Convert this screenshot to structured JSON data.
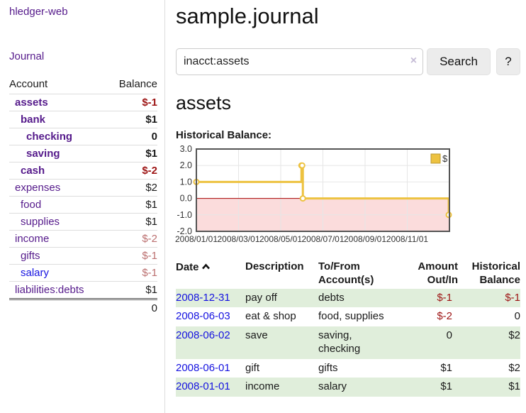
{
  "sidebar": {
    "brand": "hledger-web",
    "journal_link": "Journal",
    "account_header": "Account",
    "balance_header": "Balance",
    "accounts": [
      {
        "name": "assets",
        "indent": 1,
        "bold": true,
        "balance": "$-1",
        "balance_tone": "neg-strong",
        "link_tone": "purple"
      },
      {
        "name": "bank",
        "indent": 2,
        "bold": true,
        "balance": "$1",
        "balance_tone": "plain",
        "link_tone": "purple"
      },
      {
        "name": "checking",
        "indent": 3,
        "bold": true,
        "balance": "0",
        "balance_tone": "plain",
        "link_tone": "purple"
      },
      {
        "name": "saving",
        "indent": 3,
        "bold": true,
        "balance": "$1",
        "balance_tone": "plain",
        "link_tone": "purple"
      },
      {
        "name": "cash",
        "indent": 2,
        "bold": true,
        "balance": "$-2",
        "balance_tone": "neg-strong",
        "link_tone": "purple"
      },
      {
        "name": "expenses",
        "indent": 1,
        "bold": false,
        "balance": "$2",
        "balance_tone": "plain",
        "link_tone": "purple"
      },
      {
        "name": "food",
        "indent": 2,
        "bold": false,
        "balance": "$1",
        "balance_tone": "plain",
        "link_tone": "purple"
      },
      {
        "name": "supplies",
        "indent": 2,
        "bold": false,
        "balance": "$1",
        "balance_tone": "plain",
        "link_tone": "purple"
      },
      {
        "name": "income",
        "indent": 1,
        "bold": false,
        "balance": "$-2",
        "balance_tone": "neg-soft",
        "link_tone": "purple"
      },
      {
        "name": "gifts",
        "indent": 2,
        "bold": false,
        "balance": "$-1",
        "balance_tone": "neg-soft",
        "link_tone": "purple"
      },
      {
        "name": "salary",
        "indent": 2,
        "bold": false,
        "balance": "$-1",
        "balance_tone": "neg-soft",
        "link_tone": "blue"
      },
      {
        "name": "liabilities:debts",
        "indent": 1,
        "bold": false,
        "balance": "$1",
        "balance_tone": "plain",
        "link_tone": "purple"
      }
    ],
    "total": "0"
  },
  "header": {
    "title": "sample.journal"
  },
  "search": {
    "value": "inacct:assets",
    "clear_icon": "×",
    "button": "Search",
    "help_button": "?"
  },
  "account_page": {
    "heading": "assets",
    "chart_label": "Historical Balance:"
  },
  "chart_data": {
    "type": "line",
    "subtype": "step",
    "title": "Historical Balance:",
    "series": [
      {
        "name": "$",
        "color": "#edc240",
        "points": [
          {
            "date": "2008-01-01",
            "value": 1
          },
          {
            "date": "2008-06-01",
            "value": 2
          },
          {
            "date": "2008-06-02",
            "value": 2
          },
          {
            "date": "2008-06-03",
            "value": 0
          },
          {
            "date": "2008-12-31",
            "value": -1
          }
        ]
      }
    ],
    "xlim": [
      "2008-01-01",
      "2009-01-01"
    ],
    "ylim": [
      -2,
      3
    ],
    "ytick_labels": [
      "3.0",
      "2.0",
      "1.0",
      "0.0",
      "-1.0",
      "-2.0"
    ],
    "xtick_labels": [
      "2008/01/01",
      "2008/03/01",
      "2008/05/01",
      "2008/07/01",
      "2008/09/01",
      "2008/11/01"
    ],
    "legend_position": "top-right",
    "grid": true,
    "grid_color": "#e6e6e6",
    "border_color": "#545454",
    "negative_region_color": "#fbdcdc",
    "zero_line_color": "#aa0000",
    "marker": "circle-open"
  },
  "register": {
    "headers": {
      "date": "Date",
      "description": "Description",
      "account": "To/From Account(s)",
      "amount": "Amount Out/In",
      "balance": "Historical Balance"
    },
    "rows": [
      {
        "date": "2008-12-31",
        "description": "pay off",
        "accounts": "debts",
        "amount": "$-1",
        "amount_tone": "neg-strong",
        "balance": "$-1",
        "balance_tone": "neg-strong"
      },
      {
        "date": "2008-06-03",
        "description": "eat & shop",
        "accounts": "food, supplies",
        "amount": "$-2",
        "amount_tone": "neg-strong",
        "balance": "0",
        "balance_tone": "plain"
      },
      {
        "date": "2008-06-02",
        "description": "save",
        "accounts": "saving, checking",
        "amount": "0",
        "amount_tone": "plain",
        "balance": "$2",
        "balance_tone": "plain"
      },
      {
        "date": "2008-06-01",
        "description": "gift",
        "accounts": "gifts",
        "amount": "$1",
        "amount_tone": "plain",
        "balance": "$2",
        "balance_tone": "plain"
      },
      {
        "date": "2008-01-01",
        "description": "income",
        "accounts": "salary",
        "amount": "$1",
        "amount_tone": "plain",
        "balance": "$1",
        "balance_tone": "plain"
      }
    ]
  },
  "colors": {
    "link_purple": "#551a8b",
    "link_blue": "#1512e0",
    "neg_strong": "#9d1515",
    "neg_soft": "#bb6f6f",
    "row_stripe_green": "#e0eedb",
    "chart_line": "#edc240"
  }
}
